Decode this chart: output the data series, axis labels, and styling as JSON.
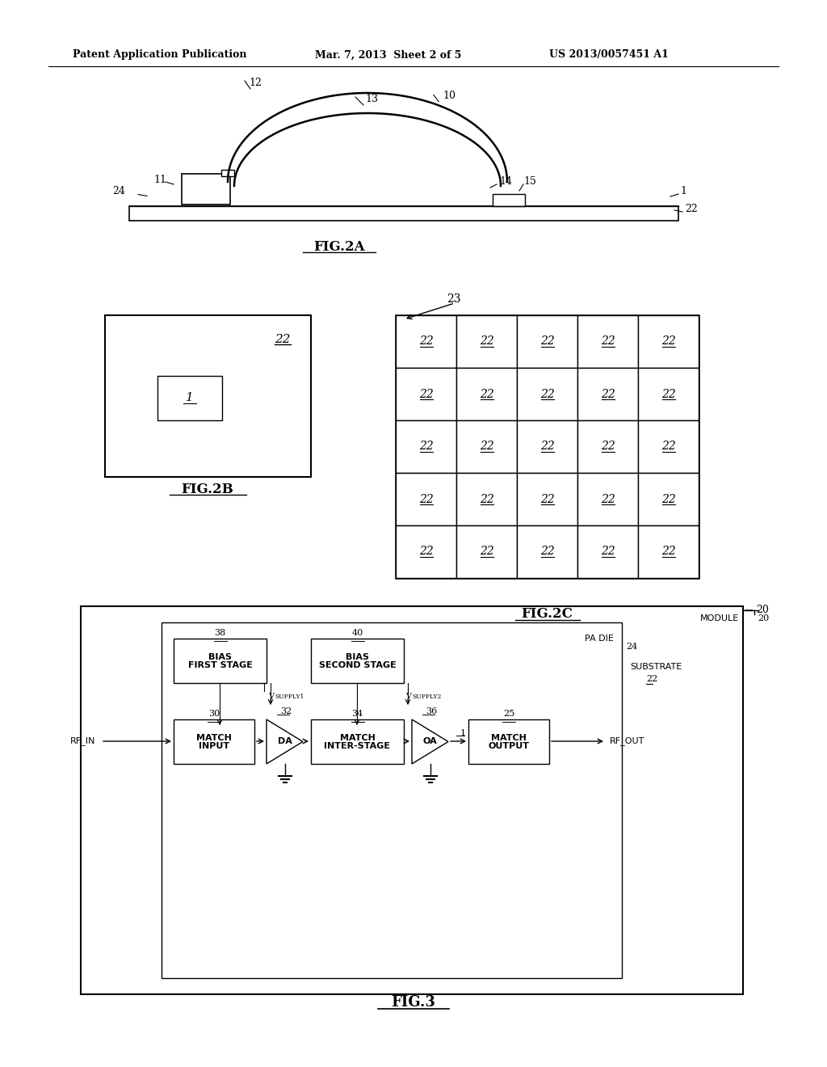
{
  "bg_color": "#ffffff",
  "header_left": "Patent Application Publication",
  "header_mid": "Mar. 7, 2013  Sheet 2 of 5",
  "header_right": "US 2013/0057451 A1",
  "fig2a_label": "FIG.2A",
  "fig2b_label": "FIG.2B",
  "fig2c_label": "FIG.2C",
  "fig3_label": "FIG.3"
}
